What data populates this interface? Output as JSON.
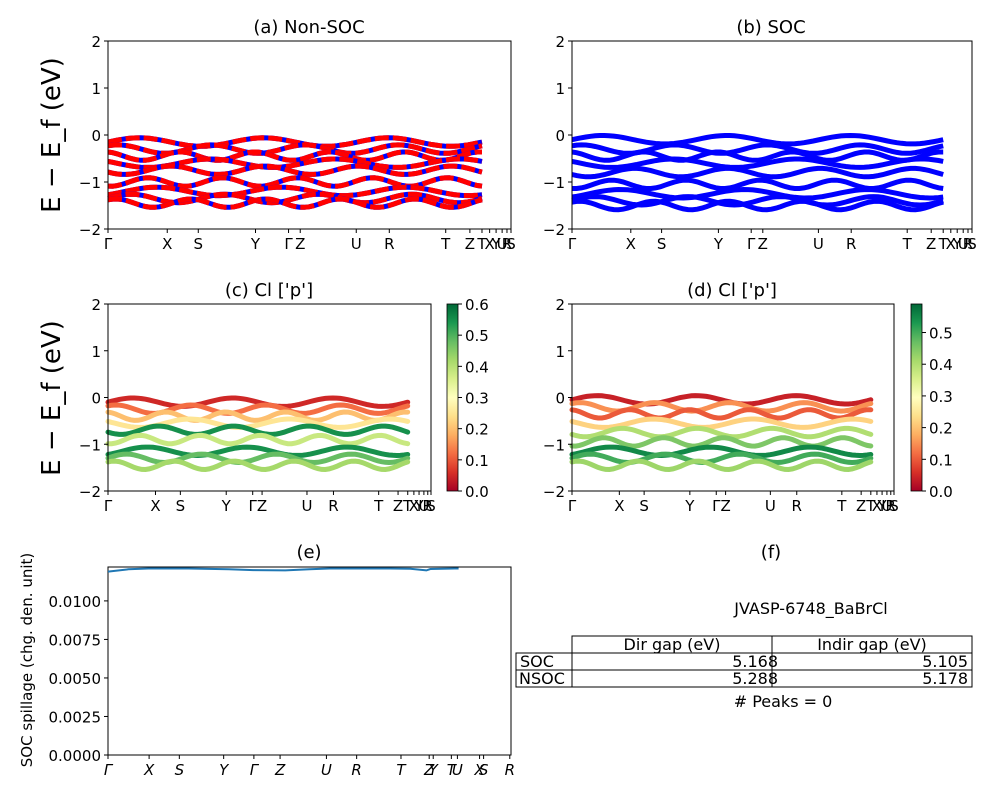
{
  "chart_data": [
    {
      "id": "a",
      "type": "line",
      "title": "(a) Non-SOC",
      "ylabel": "E − E_f (eV)",
      "ylim": [
        -2,
        2
      ],
      "yticks": [
        -2,
        -1,
        0,
        1,
        2
      ],
      "xtick_labels": [
        "Γ",
        "X",
        "S",
        "Y",
        "Γ",
        "Z",
        "U",
        "R",
        "T",
        "Z",
        "T",
        "X",
        "Y",
        "U",
        "R",
        "S"
      ],
      "xtick_positions": [
        0,
        0.147,
        0.224,
        0.366,
        0.448,
        0.477,
        0.616,
        0.698,
        0.838,
        0.898,
        0.928,
        0.947,
        0.963,
        0.978,
        0.99,
        1.0
      ],
      "series_style": "dashed red/blue spin-resolved bands",
      "colors": [
        "#ff0000",
        "#0000ff"
      ],
      "bands_eV_approx": [
        -0.15,
        -0.3,
        -0.45,
        -0.6,
        -0.75,
        -1.0,
        -1.2,
        -1.35,
        -1.45
      ]
    },
    {
      "id": "b",
      "type": "line",
      "title": "(b) SOC",
      "ylim": [
        -2,
        2
      ],
      "yticks": [
        -2,
        -1,
        0,
        1,
        2
      ],
      "xtick_labels": [
        "Γ",
        "X",
        "S",
        "Y",
        "Γ",
        "Z",
        "U",
        "R",
        "T",
        "Z",
        "T",
        "X",
        "Y",
        "U",
        "R",
        "S"
      ],
      "xtick_positions": [
        0,
        0.147,
        0.224,
        0.366,
        0.448,
        0.477,
        0.616,
        0.698,
        0.838,
        0.898,
        0.928,
        0.947,
        0.963,
        0.978,
        0.99,
        1.0
      ],
      "colors": [
        "#0000ff"
      ],
      "bands_eV_approx": [
        -0.1,
        -0.3,
        -0.45,
        -0.6,
        -0.8,
        -1.05,
        -1.25,
        -1.4,
        -1.5
      ]
    },
    {
      "id": "c",
      "type": "scatter",
      "title": "(c)  Cl ['p']",
      "ylabel": "E − E_f (eV)",
      "ylim": [
        -2,
        2
      ],
      "yticks": [
        -2,
        -1,
        0,
        1,
        2
      ],
      "xtick_labels": [
        "Γ",
        "X",
        "S",
        "Y",
        "Γ",
        "Z",
        "U",
        "R",
        "T",
        "Z",
        "T",
        "X",
        "Y",
        "U",
        "R",
        "S"
      ],
      "xtick_positions": [
        0,
        0.147,
        0.224,
        0.366,
        0.448,
        0.477,
        0.616,
        0.698,
        0.838,
        0.898,
        0.928,
        0.947,
        0.963,
        0.978,
        0.99,
        1.0
      ],
      "colorbar": {
        "cmap": "RdYlGn",
        "range": [
          0.0,
          0.6
        ],
        "ticks": [
          "0.0",
          "0.1",
          "0.2",
          "0.3",
          "0.4",
          "0.5",
          "0.6"
        ]
      },
      "bands": [
        {
          "e": -0.1,
          "w": 0.05
        },
        {
          "e": -0.25,
          "w": 0.12
        },
        {
          "e": -0.4,
          "w": 0.2
        },
        {
          "e": -0.55,
          "w": 0.25
        },
        {
          "e": -0.7,
          "w": 0.55
        },
        {
          "e": -0.9,
          "w": 0.38
        },
        {
          "e": -1.15,
          "w": 0.55
        },
        {
          "e": -1.3,
          "w": 0.48
        },
        {
          "e": -1.45,
          "w": 0.42
        }
      ]
    },
    {
      "id": "d",
      "type": "scatter",
      "title": "(d) Cl ['p']",
      "ylim": [
        -2,
        2
      ],
      "yticks": [
        -2,
        -1,
        0,
        1,
        2
      ],
      "xtick_labels": [
        "Γ",
        "X",
        "S",
        "Y",
        "Γ",
        "Z",
        "U",
        "R",
        "T",
        "Z",
        "T",
        "X",
        "Y",
        "U",
        "R",
        "S"
      ],
      "xtick_positions": [
        0,
        0.147,
        0.224,
        0.366,
        0.448,
        0.477,
        0.616,
        0.698,
        0.838,
        0.898,
        0.928,
        0.947,
        0.963,
        0.978,
        0.99,
        1.0
      ],
      "colorbar": {
        "cmap": "RdYlGn",
        "range": [
          0.0,
          0.59
        ],
        "ticks": [
          "0.0",
          "0.1",
          "0.2",
          "0.3",
          "0.4",
          "0.5"
        ]
      },
      "bands": [
        {
          "e": -0.05,
          "w": 0.04
        },
        {
          "e": -0.2,
          "w": 0.15
        },
        {
          "e": -0.35,
          "w": 0.1
        },
        {
          "e": -0.55,
          "w": 0.22
        },
        {
          "e": -0.75,
          "w": 0.4
        },
        {
          "e": -0.95,
          "w": 0.45
        },
        {
          "e": -1.15,
          "w": 0.55
        },
        {
          "e": -1.3,
          "w": 0.5
        },
        {
          "e": -1.45,
          "w": 0.42
        }
      ]
    },
    {
      "id": "e",
      "type": "line",
      "title": "(e)",
      "ylabel": "SOC spillage (chg. den. unit)",
      "ylim": [
        0.0,
        0.0122
      ],
      "yticks": [
        "0.0000",
        "0.0025",
        "0.0050",
        "0.0075",
        "0.0100"
      ],
      "xtick_labels": [
        "Γ",
        "X",
        "S",
        "Y",
        "Γ",
        "Z",
        "U",
        "R",
        "T",
        "Z",
        "Y",
        "T",
        "U",
        "X",
        "S",
        "R"
      ],
      "xtick_positions": [
        0,
        0.102,
        0.177,
        0.287,
        0.362,
        0.427,
        0.542,
        0.617,
        0.727,
        0.797,
        0.807,
        0.852,
        0.867,
        0.922,
        0.932,
        0.997
      ],
      "color": "#1f77b4",
      "x": [
        0,
        0.05,
        0.1,
        0.2,
        0.3,
        0.36,
        0.44,
        0.5,
        0.55,
        0.62,
        0.7,
        0.75,
        0.79,
        0.8,
        0.86,
        0.87
      ],
      "y": [
        0.0119,
        0.01205,
        0.0121,
        0.0121,
        0.01205,
        0.012,
        0.01198,
        0.01205,
        0.0121,
        0.0121,
        0.0121,
        0.01208,
        0.01198,
        0.01207,
        0.0121,
        0.0121
      ]
    },
    {
      "id": "f",
      "type": "table",
      "title": "(f)",
      "subtitle": "JVASP-6748_BaBrCl",
      "columns": [
        "Dir gap (eV)",
        "Indir gap (eV)"
      ],
      "rows": [
        {
          "label": "SOC",
          "values": [
            "5.168",
            "5.105"
          ]
        },
        {
          "label": "NSOC",
          "values": [
            "5.288",
            "5.178"
          ]
        }
      ],
      "footer": "# Peaks = 0"
    }
  ]
}
